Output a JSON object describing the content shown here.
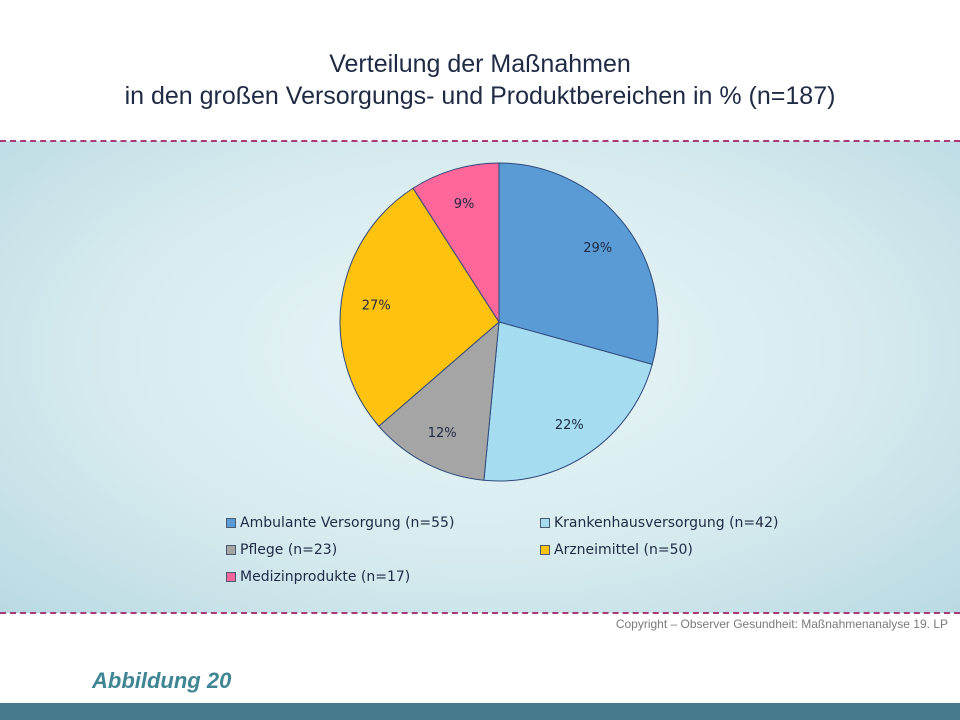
{
  "title_lines": [
    "Verteilung der Maßnahmen",
    "in den großen Versorgungs- und Produktbereichen in % (n=187)"
  ],
  "chart_data": {
    "type": "pie",
    "title": "Verteilung der Maßnahmen in den großen Versorgungs- und Produktbereichen in % (n=187)",
    "slices": [
      {
        "name": "Ambulante Versorgung (n=55)",
        "value": 29,
        "label": "29%",
        "color": "#5b9bd5"
      },
      {
        "name": "Krankenhausversorgung (n=42)",
        "value": 22,
        "label": "22%",
        "color": "#a6dcf0"
      },
      {
        "name": "Pflege (n=23)",
        "value": 12,
        "label": "12%",
        "color": "#a5a5a5"
      },
      {
        "name": "Arzneimittel (n=50)",
        "value": 27,
        "label": "27%",
        "color": "#ffc20e"
      },
      {
        "name": "Medizinprodukte (n=17)",
        "value": 9,
        "label": "9%",
        "color": "#ff6699"
      }
    ],
    "legend": {
      "placement": "bottom",
      "entries": [
        "Ambulante Versorgung (n=55)",
        "Krankenhausversorgung (n=42)",
        "Pflege (n=23)",
        "Arzneimittel (n=50)",
        "Medizinprodukte (n=17)"
      ]
    },
    "start_angle": "12 o'clock",
    "direction": "clockwise"
  },
  "copyright": "Copyright – Observer Gesundheit: Maßnahmenanalyse 19. LP",
  "figure_label": "Abbildung 20",
  "colors": {
    "title": "#1f2a44",
    "dashed_line": "#a83a7a",
    "band": "#d7ebef",
    "figure_label": "#3f8593",
    "footer_bar": "#477a8c"
  }
}
